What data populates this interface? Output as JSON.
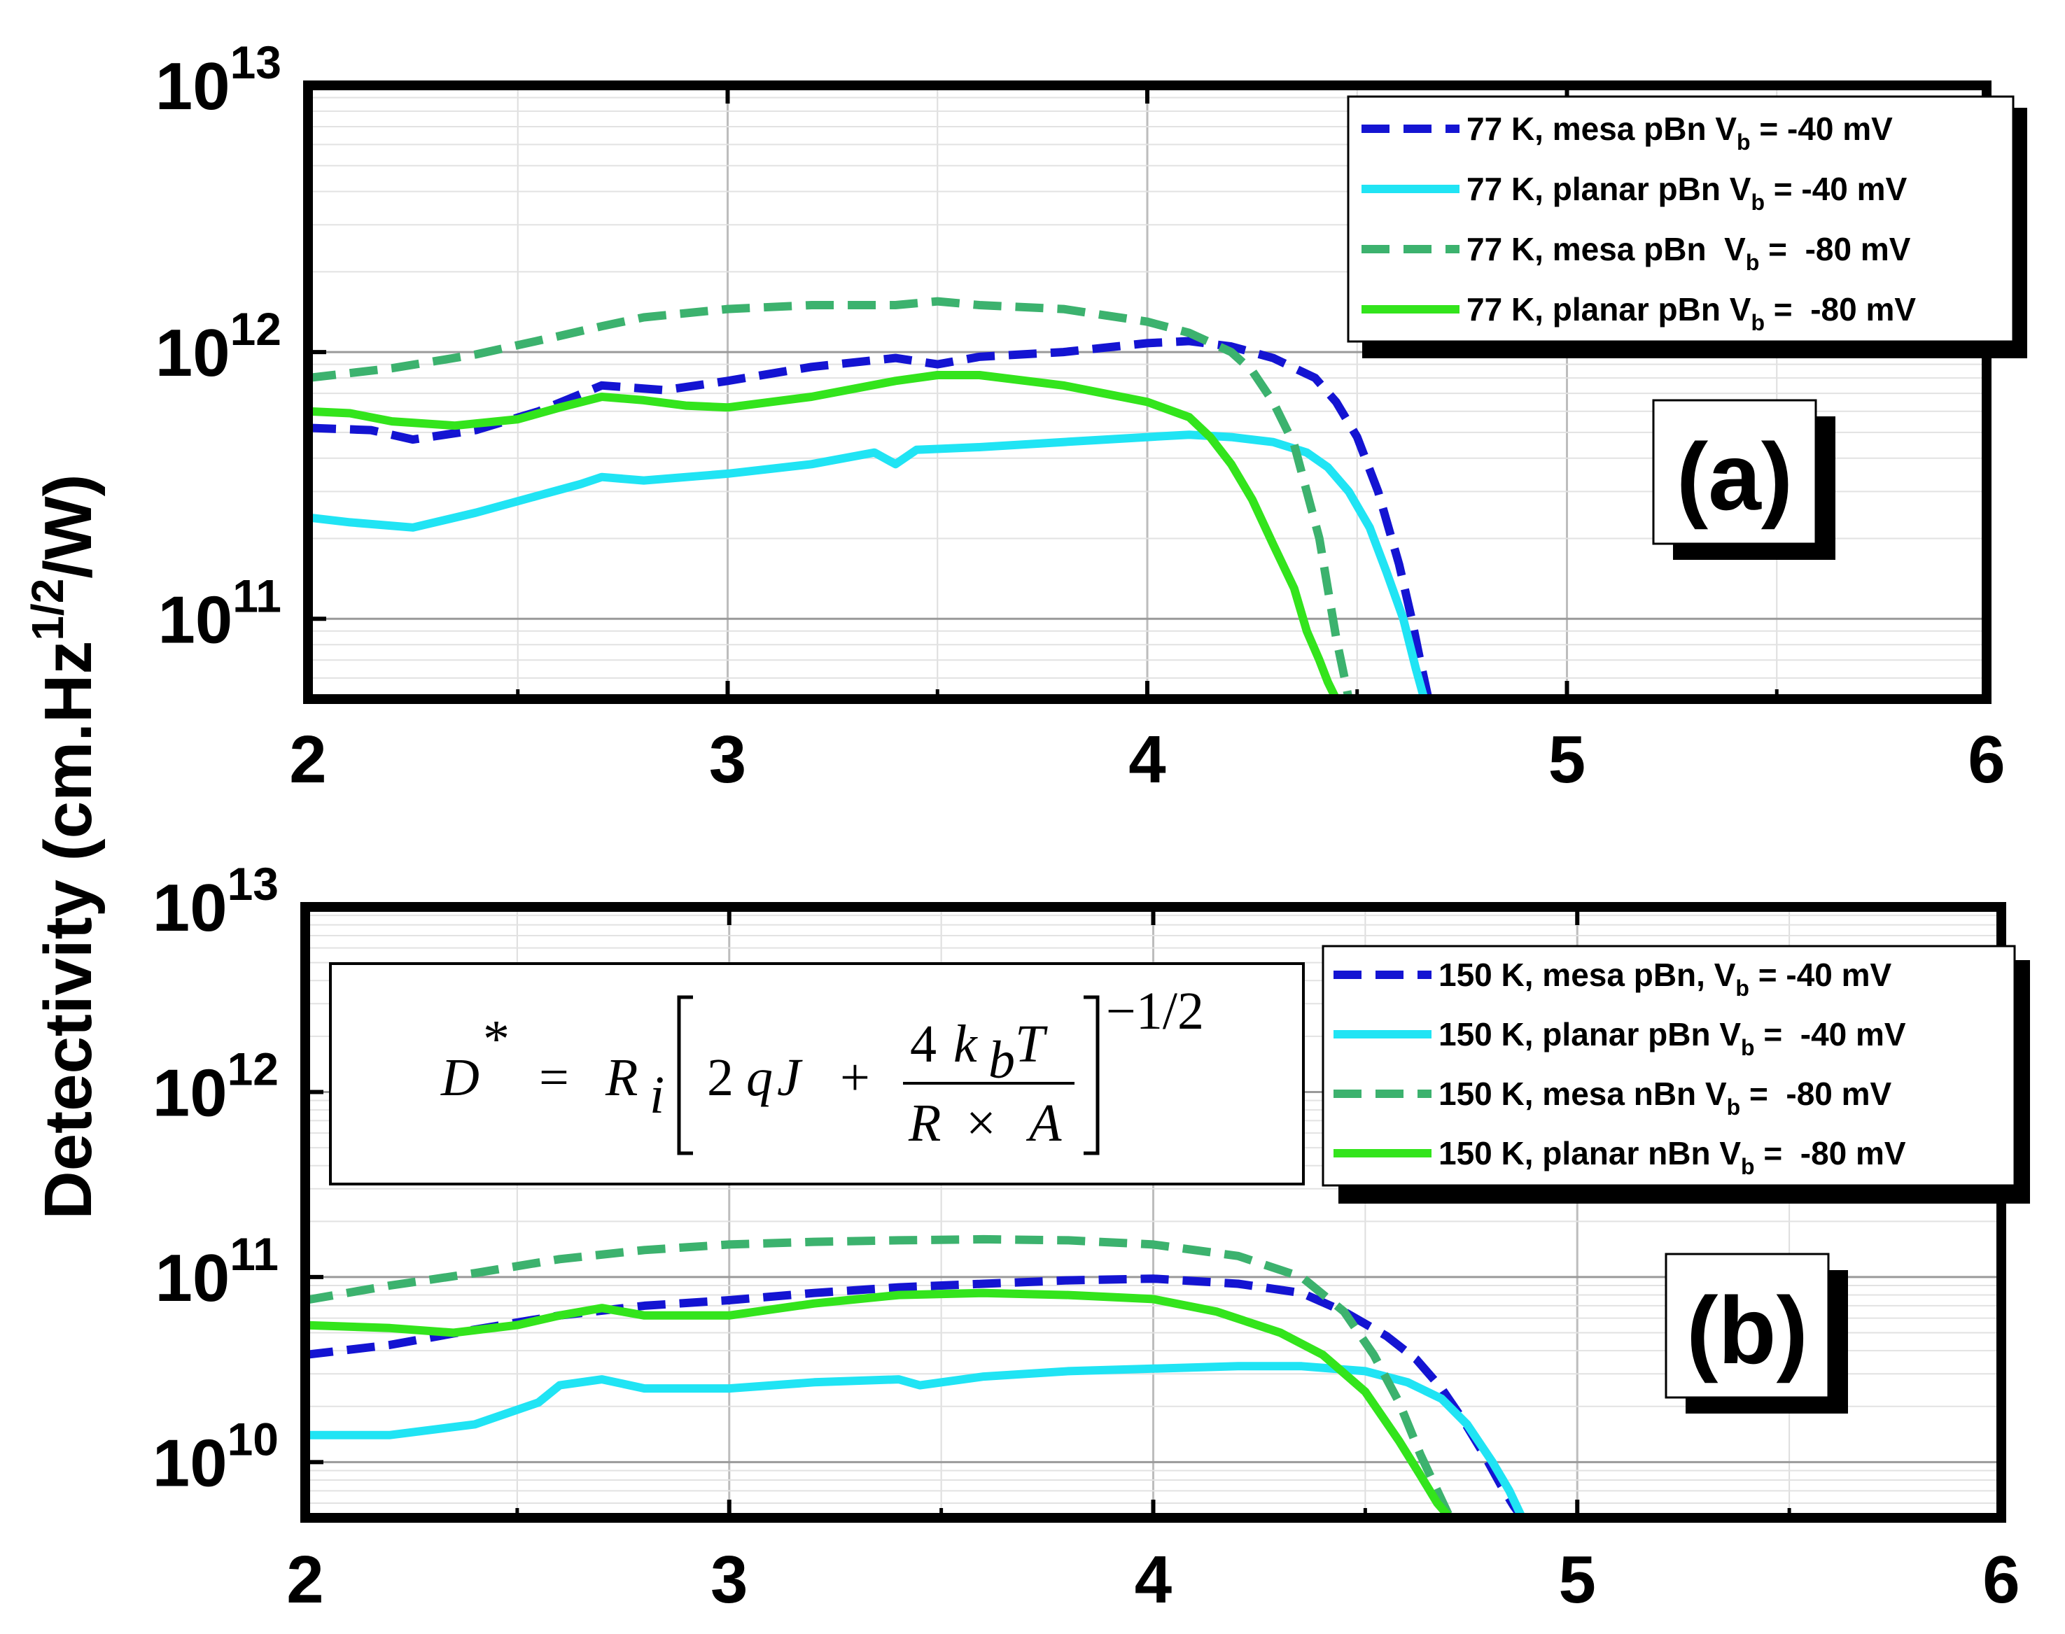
{
  "chart_data": [
    {
      "type": "line",
      "panel_label": "(a)",
      "x_ticks": [
        "2",
        "3",
        "4",
        "5",
        "6"
      ],
      "xlim": [
        2,
        6
      ],
      "yscale": "log",
      "ylim": [
        50000000000.0,
        10000000000000.0
      ],
      "y_ticks": [
        {
          "base": "10",
          "exp": "13",
          "value": 10000000000000.0
        },
        {
          "base": "10",
          "exp": "12",
          "value": 1000000000000.0
        },
        {
          "base": "10",
          "exp": "11",
          "value": 100000000000.0
        }
      ],
      "grid": true,
      "legend_position": "top-right",
      "series": [
        {
          "name_prefix": "77 K, mesa pBn V",
          "name_sub": "b",
          "name_suffix": " = -40 mV",
          "color": "#1414d2",
          "dash": true,
          "x": [
            2.0,
            2.15,
            2.25,
            2.4,
            2.55,
            2.7,
            2.85,
            3.0,
            3.2,
            3.4,
            3.5,
            3.6,
            3.8,
            4.0,
            4.1,
            4.2,
            4.3,
            4.4,
            4.45,
            4.5,
            4.55,
            4.6,
            4.63,
            4.65,
            4.67
          ],
          "y": [
            520000000000.0,
            510000000000.0,
            470000000000.0,
            510000000000.0,
            600000000000.0,
            750000000000.0,
            720000000000.0,
            780000000000.0,
            880000000000.0,
            950000000000.0,
            900000000000.0,
            960000000000.0,
            1000000000000.0,
            1080000000000.0,
            1100000000000.0,
            1050000000000.0,
            950000000000.0,
            800000000000.0,
            650000000000.0,
            480000000000.0,
            300000000000.0,
            160000000000.0,
            100000000000.0,
            70000000000.0,
            50000000000.0
          ]
        },
        {
          "name_prefix": "77 K, planar pBn V",
          "name_sub": "b",
          "name_suffix": " = -40 mV",
          "color": "#20e4f4",
          "dash": false,
          "x": [
            2.0,
            2.1,
            2.25,
            2.4,
            2.55,
            2.65,
            2.7,
            2.8,
            3.0,
            3.2,
            3.35,
            3.4,
            3.45,
            3.6,
            3.8,
            4.0,
            4.1,
            4.2,
            4.3,
            4.38,
            4.43,
            4.48,
            4.53,
            4.57,
            4.61,
            4.64,
            4.66
          ],
          "y": [
            240000000000.0,
            230000000000.0,
            220000000000.0,
            250000000000.0,
            290000000000.0,
            320000000000.0,
            340000000000.0,
            330000000000.0,
            350000000000.0,
            380000000000.0,
            420000000000.0,
            380000000000.0,
            430000000000.0,
            440000000000.0,
            460000000000.0,
            480000000000.0,
            490000000000.0,
            480000000000.0,
            460000000000.0,
            420000000000.0,
            370000000000.0,
            300000000000.0,
            220000000000.0,
            150000000000.0,
            100000000000.0,
            65000000000.0,
            50000000000.0
          ]
        },
        {
          "name_prefix": "77 K, mesa pBn  V",
          "name_sub": "b",
          "name_suffix": " =  -80 mV",
          "color": "#3cb26e",
          "dash": true,
          "x": [
            2.0,
            2.2,
            2.4,
            2.6,
            2.7,
            2.8,
            3.0,
            3.2,
            3.4,
            3.5,
            3.6,
            3.8,
            4.0,
            4.1,
            4.2,
            4.25,
            4.3,
            4.35,
            4.38,
            4.41,
            4.43,
            4.45,
            4.47,
            4.48
          ],
          "y": [
            800000000000.0,
            870000000000.0,
            980000000000.0,
            1150000000000.0,
            1250000000000.0,
            1350000000000.0,
            1450000000000.0,
            1500000000000.0,
            1500000000000.0,
            1550000000000.0,
            1500000000000.0,
            1450000000000.0,
            1300000000000.0,
            1180000000000.0,
            1000000000000.0,
            850000000000.0,
            650000000000.0,
            450000000000.0,
            300000000000.0,
            200000000000.0,
            130000000000.0,
            85000000000.0,
            60000000000.0,
            50000000000.0
          ]
        },
        {
          "name_prefix": "77 K, planar pBn V",
          "name_sub": "b",
          "name_suffix": " =  -80 mV",
          "color": "#33e41c",
          "dash": false,
          "x": [
            2.0,
            2.1,
            2.2,
            2.35,
            2.5,
            2.6,
            2.7,
            2.8,
            2.9,
            3.0,
            3.2,
            3.4,
            3.5,
            3.6,
            3.8,
            4.0,
            4.1,
            4.15,
            4.2,
            4.25,
            4.3,
            4.35,
            4.38,
            4.41,
            4.43,
            4.45
          ],
          "y": [
            600000000000.0,
            590000000000.0,
            550000000000.0,
            530000000000.0,
            560000000000.0,
            620000000000.0,
            680000000000.0,
            660000000000.0,
            630000000000.0,
            620000000000.0,
            680000000000.0,
            780000000000.0,
            820000000000.0,
            820000000000.0,
            750000000000.0,
            650000000000.0,
            570000000000.0,
            480000000000.0,
            380000000000.0,
            280000000000.0,
            190000000000.0,
            130000000000.0,
            90000000000.0,
            70000000000.0,
            58000000000.0,
            50000000000.0
          ]
        }
      ]
    },
    {
      "type": "line",
      "panel_label": "(b)",
      "x_ticks": [
        "2",
        "3",
        "4",
        "5",
        "6"
      ],
      "xlim": [
        2,
        6
      ],
      "yscale": "log",
      "ylim": [
        5000000000.0,
        10000000000000.0
      ],
      "y_ticks": [
        {
          "base": "10",
          "exp": "13",
          "value": 10000000000000.0
        },
        {
          "base": "10",
          "exp": "12",
          "value": 1000000000000.0
        },
        {
          "base": "10",
          "exp": "11",
          "value": 100000000000.0
        },
        {
          "base": "10",
          "exp": "10",
          "value": 10000000000.0
        }
      ],
      "grid": true,
      "legend_position": "top-right",
      "series": [
        {
          "name_prefix": "150 K, mesa pBn, V",
          "name_sub": "b",
          "name_suffix": " = -40 mV",
          "color": "#1414d2",
          "dash": true,
          "x": [
            2.0,
            2.2,
            2.4,
            2.6,
            2.8,
            3.0,
            3.2,
            3.4,
            3.6,
            3.8,
            4.0,
            4.2,
            4.35,
            4.45,
            4.55,
            4.62,
            4.68,
            4.73,
            4.78,
            4.82,
            4.85,
            4.87
          ],
          "y": [
            38000000000.0,
            43000000000.0,
            52000000000.0,
            62000000000.0,
            70000000000.0,
            75000000000.0,
            82000000000.0,
            88000000000.0,
            92000000000.0,
            96000000000.0,
            98000000000.0,
            92000000000.0,
            82000000000.0,
            65000000000.0,
            48000000000.0,
            36000000000.0,
            25000000000.0,
            17000000000.0,
            11000000000.0,
            7500000000.0,
            5800000000.0,
            5000000000.0
          ]
        },
        {
          "name_prefix": "150 K, planar pBn V",
          "name_sub": "b",
          "name_suffix": " =  -40 mV",
          "color": "#20e4f4",
          "dash": false,
          "x": [
            2.0,
            2.2,
            2.4,
            2.55,
            2.6,
            2.7,
            2.8,
            3.0,
            3.2,
            3.4,
            3.45,
            3.6,
            3.8,
            4.0,
            4.2,
            4.35,
            4.5,
            4.6,
            4.68,
            4.74,
            4.8,
            4.84,
            4.87
          ],
          "y": [
            14000000000.0,
            14000000000.0,
            16000000000.0,
            21000000000.0,
            26000000000.0,
            28000000000.0,
            25000000000.0,
            25000000000.0,
            27000000000.0,
            28000000000.0,
            26000000000.0,
            29000000000.0,
            31000000000.0,
            32000000000.0,
            33000000000.0,
            33000000000.0,
            31000000000.0,
            27000000000.0,
            22000000000.0,
            16000000000.0,
            10000000000.0,
            7000000000.0,
            5000000000.0
          ]
        },
        {
          "name_prefix": "150 K, mesa nBn V",
          "name_sub": "b",
          "name_suffix": " =  -80 mV",
          "color": "#3cb26e",
          "dash": true,
          "x": [
            2.0,
            2.2,
            2.4,
            2.6,
            2.8,
            3.0,
            3.2,
            3.4,
            3.6,
            3.8,
            4.0,
            4.2,
            4.35,
            4.45,
            4.52,
            4.58,
            4.63,
            4.67,
            4.7
          ],
          "y": [
            75000000000.0,
            90000000000.0,
            105000000000.0,
            125000000000.0,
            140000000000.0,
            150000000000.0,
            155000000000.0,
            158000000000.0,
            160000000000.0,
            158000000000.0,
            150000000000.0,
            130000000000.0,
            100000000000.0,
            65000000000.0,
            38000000000.0,
            21000000000.0,
            11000000000.0,
            7000000000.0,
            5000000000.0
          ]
        },
        {
          "name_prefix": "150 K, planar nBn V",
          "name_sub": "b",
          "name_suffix": " =  -80 mV",
          "color": "#33e41c",
          "dash": false,
          "x": [
            2.0,
            2.2,
            2.35,
            2.5,
            2.6,
            2.7,
            2.8,
            3.0,
            3.2,
            3.4,
            3.6,
            3.8,
            4.0,
            4.15,
            4.3,
            4.4,
            4.5,
            4.58,
            4.63,
            4.67,
            4.7
          ],
          "y": [
            55000000000.0,
            53000000000.0,
            50000000000.0,
            55000000000.0,
            62000000000.0,
            68000000000.0,
            62000000000.0,
            62000000000.0,
            72000000000.0,
            80000000000.0,
            82000000000.0,
            80000000000.0,
            76000000000.0,
            65000000000.0,
            50000000000.0,
            38000000000.0,
            24000000000.0,
            13000000000.0,
            8500000000.0,
            6000000000.0,
            5000000000.0
          ]
        }
      ]
    }
  ],
  "shared_ylabel": {
    "prefix": "Detectivity (cm.Hz",
    "sup": "1/2",
    "suffix": "/W)"
  },
  "equation": {
    "D": "D",
    "star": "*",
    "eq": "=",
    "R": "R",
    "i": "i",
    "two": "2",
    "q": "q",
    "J": "J",
    "plus": "+",
    "num_four": "4",
    "num_k": "k",
    "num_b": "b",
    "num_T": "T",
    "den_R": "R",
    "den_times": "×",
    "den_A": "A",
    "exponent": "−1/2"
  }
}
